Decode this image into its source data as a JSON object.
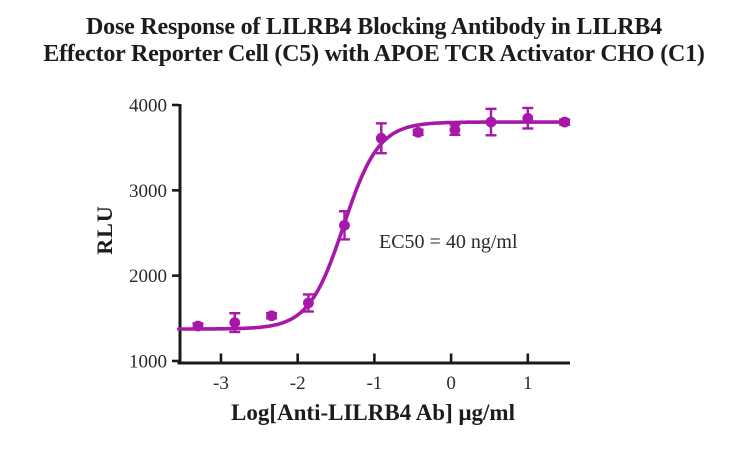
{
  "title": {
    "line1": "Dose Response of LILRB4 Blocking Antibody in LILRB4",
    "line2": "Effector Reporter Cell (C5) with APOE TCR Activator CHO (C1)"
  },
  "chart_data": {
    "type": "scatter",
    "subtype": "dose-response-sigmoidal-fit",
    "title": "Dose Response of LILRB4 Blocking Antibody in LILRB4 Effector Reporter Cell (C5) with APOE TCR Activator CHO (C1)",
    "xlabel": "Log[Anti-LILRB4 Ab] μg/ml",
    "ylabel": "RLU",
    "annotation": "EC50 = 40 ng/ml",
    "series_color": "#A818A8",
    "axis_color": "#1a1a1a",
    "xlim": [
      -3.56,
      1.55
    ],
    "ylim": [
      1000,
      4000
    ],
    "xticks": [
      -3,
      -2,
      -1,
      0,
      1
    ],
    "yticks": [
      1000,
      2000,
      3000,
      4000
    ],
    "points": {
      "x_log": [
        -3.3,
        -2.82,
        -2.34,
        -1.86,
        -1.39,
        -0.91,
        -0.43,
        0.05,
        0.52,
        1.0,
        1.48
      ],
      "y_rlu": [
        1410,
        1450,
        1530,
        1680,
        2590,
        3610,
        3680,
        3710,
        3800,
        3845,
        3800
      ],
      "y_err": [
        30,
        110,
        30,
        100,
        165,
        175,
        30,
        60,
        155,
        120,
        30
      ]
    },
    "fit": {
      "model": "4PL",
      "bottom": 1375,
      "top": 3800,
      "logEC50": -1.4,
      "hill": 1.9,
      "curve_x_start": -3.55,
      "curve_x_end": 1.48
    },
    "legend": "none",
    "grid": false
  }
}
